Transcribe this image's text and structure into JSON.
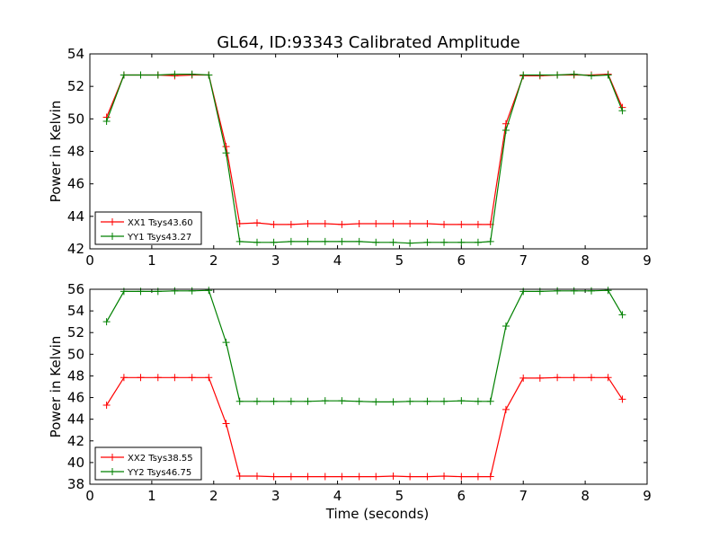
{
  "title": "GL64, ID:93343 Calibrated Amplitude",
  "chart_data": [
    {
      "type": "line",
      "ylabel": "Power in Kelvin",
      "xlabel": "",
      "xlim": [
        0,
        9
      ],
      "ylim": [
        42,
        54
      ],
      "xticks": [
        "0",
        "1",
        "2",
        "3",
        "4",
        "5",
        "6",
        "7",
        "8",
        "9"
      ],
      "yticks": [
        "42",
        "44",
        "46",
        "48",
        "50",
        "52",
        "54"
      ],
      "legend_position": "lower-left",
      "series": [
        {
          "name": "XX1 Tsys43.60",
          "color": "#ff0000",
          "x": [
            0.27,
            0.55,
            0.82,
            1.1,
            1.37,
            1.65,
            1.92,
            2.2,
            2.42,
            2.7,
            2.97,
            3.25,
            3.52,
            3.8,
            4.07,
            4.35,
            4.62,
            4.9,
            5.17,
            5.45,
            5.72,
            6.0,
            6.27,
            6.47,
            6.72,
            7.0,
            7.27,
            7.55,
            7.82,
            8.1,
            8.37,
            8.6
          ],
          "y": [
            50.1,
            52.7,
            52.7,
            52.7,
            52.65,
            52.7,
            52.7,
            48.3,
            43.55,
            43.6,
            43.5,
            43.5,
            43.55,
            43.55,
            43.5,
            43.55,
            43.55,
            43.55,
            43.55,
            43.55,
            43.5,
            43.5,
            43.5,
            43.5,
            49.7,
            52.65,
            52.65,
            52.7,
            52.7,
            52.7,
            52.75,
            50.7
          ]
        },
        {
          "name": "YY1 Tsys43.27",
          "color": "#008000",
          "x": [
            0.27,
            0.55,
            0.82,
            1.1,
            1.37,
            1.65,
            1.92,
            2.2,
            2.42,
            2.7,
            2.97,
            3.25,
            3.52,
            3.8,
            4.07,
            4.35,
            4.62,
            4.9,
            5.17,
            5.45,
            5.72,
            6.0,
            6.27,
            6.47,
            6.72,
            7.0,
            7.27,
            7.55,
            7.82,
            8.1,
            8.37,
            8.6
          ],
          "y": [
            49.85,
            52.7,
            52.7,
            52.7,
            52.75,
            52.75,
            52.7,
            47.9,
            42.45,
            42.4,
            42.4,
            42.45,
            42.45,
            42.45,
            42.45,
            42.45,
            42.4,
            42.4,
            42.35,
            42.4,
            42.4,
            42.4,
            42.4,
            42.45,
            49.3,
            52.7,
            52.7,
            52.7,
            52.75,
            52.65,
            52.7,
            50.5
          ]
        }
      ]
    },
    {
      "type": "line",
      "ylabel": "Power in Kelvin",
      "xlabel": "Time (seconds)",
      "xlim": [
        0,
        9
      ],
      "ylim": [
        38,
        56
      ],
      "xticks": [
        "0",
        "1",
        "2",
        "3",
        "4",
        "5",
        "6",
        "7",
        "8",
        "9"
      ],
      "yticks": [
        "38",
        "40",
        "42",
        "44",
        "46",
        "48",
        "50",
        "52",
        "54",
        "56"
      ],
      "legend_position": "lower-left",
      "series": [
        {
          "name": "XX2 Tsys38.55",
          "color": "#ff0000",
          "x": [
            0.27,
            0.55,
            0.82,
            1.1,
            1.37,
            1.65,
            1.92,
            2.2,
            2.42,
            2.7,
            2.97,
            3.25,
            3.52,
            3.8,
            4.07,
            4.35,
            4.62,
            4.9,
            5.17,
            5.45,
            5.72,
            6.0,
            6.27,
            6.47,
            6.72,
            7.0,
            7.27,
            7.55,
            7.82,
            8.1,
            8.37,
            8.6
          ],
          "y": [
            45.3,
            47.85,
            47.85,
            47.85,
            47.85,
            47.85,
            47.85,
            43.6,
            38.75,
            38.75,
            38.7,
            38.7,
            38.7,
            38.7,
            38.7,
            38.7,
            38.7,
            38.75,
            38.7,
            38.7,
            38.75,
            38.7,
            38.7,
            38.7,
            44.9,
            47.8,
            47.8,
            47.85,
            47.85,
            47.85,
            47.85,
            45.85
          ]
        },
        {
          "name": "YY2 Tsys46.75",
          "color": "#008000",
          "x": [
            0.27,
            0.55,
            0.82,
            1.1,
            1.37,
            1.65,
            1.92,
            2.2,
            2.42,
            2.7,
            2.97,
            3.25,
            3.52,
            3.8,
            4.07,
            4.35,
            4.62,
            4.9,
            5.17,
            5.45,
            5.72,
            6.0,
            6.27,
            6.47,
            6.72,
            7.0,
            7.27,
            7.55,
            7.82,
            8.1,
            8.37,
            8.6
          ],
          "y": [
            53.0,
            55.8,
            55.8,
            55.8,
            55.85,
            55.85,
            55.9,
            51.1,
            45.65,
            45.65,
            45.65,
            45.65,
            45.65,
            45.7,
            45.7,
            45.65,
            45.6,
            45.6,
            45.65,
            45.65,
            45.65,
            45.7,
            45.65,
            45.65,
            52.6,
            55.8,
            55.8,
            55.85,
            55.85,
            55.85,
            55.9,
            53.65
          ]
        }
      ]
    }
  ]
}
